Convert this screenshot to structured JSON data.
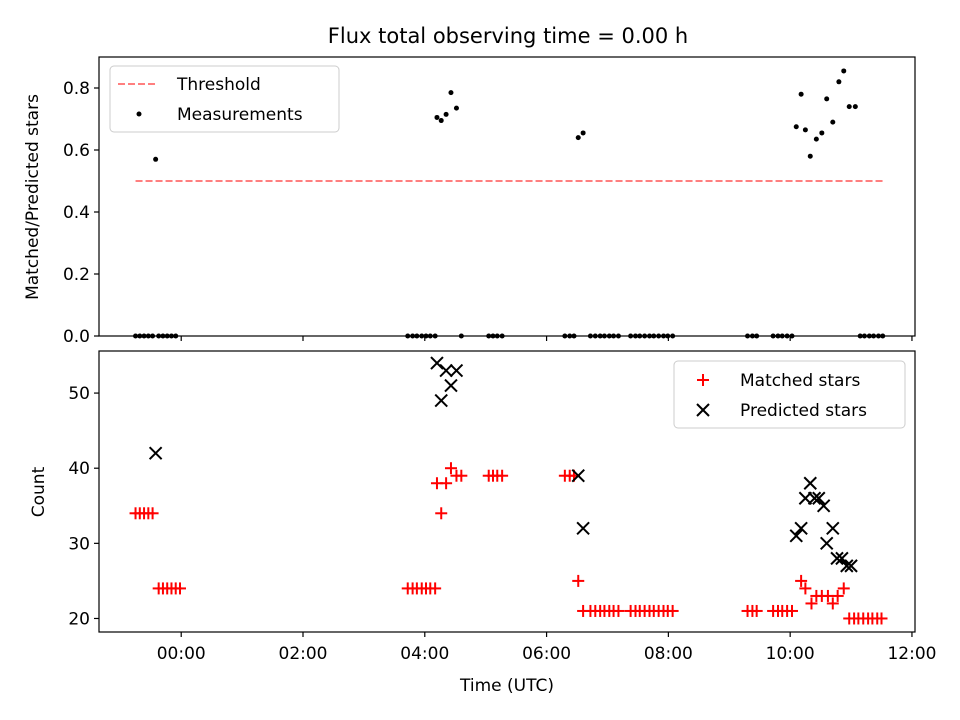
{
  "chart_data": [
    {
      "type": "scatter",
      "title": "Flux total observing time = 0.00 h",
      "xlabel": "",
      "ylabel": "Matched/Predicted stars",
      "xlim": [
        -1.35,
        12.05
      ],
      "ylim": [
        0,
        0.9
      ],
      "yticks": [
        0.0,
        0.2,
        0.4,
        0.6,
        0.8
      ],
      "ytick_labels": [
        "0.0",
        "0.2",
        "0.4",
        "0.6",
        "0.8"
      ],
      "grid": false,
      "legend_position": "top-left",
      "threshold": {
        "name": "Threshold",
        "y": 0.5,
        "x_start": -0.75,
        "x_end": 11.55,
        "color": "#ff7f7f",
        "style": "dashed"
      },
      "series": [
        {
          "name": "Measurements",
          "marker": "dot",
          "color": "#000000",
          "points": [
            [
              -0.75,
              0
            ],
            [
              -0.68,
              0
            ],
            [
              -0.61,
              0
            ],
            [
              -0.54,
              0
            ],
            [
              -0.47,
              0
            ],
            [
              -0.37,
              0
            ],
            [
              -0.3,
              0
            ],
            [
              -0.23,
              0
            ],
            [
              -0.16,
              0
            ],
            [
              -0.09,
              0
            ],
            [
              -0.42,
              0.57
            ],
            [
              3.72,
              0
            ],
            [
              3.8,
              0
            ],
            [
              3.87,
              0
            ],
            [
              3.95,
              0
            ],
            [
              4.02,
              0
            ],
            [
              4.09,
              0
            ],
            [
              4.17,
              0
            ],
            [
              4.2,
              0.705
            ],
            [
              4.27,
              0.695
            ],
            [
              4.35,
              0.715
            ],
            [
              4.43,
              0.785
            ],
            [
              4.52,
              0.735
            ],
            [
              4.6,
              0
            ],
            [
              5.05,
              0
            ],
            [
              5.12,
              0
            ],
            [
              5.19,
              0
            ],
            [
              5.27,
              0
            ],
            [
              6.3,
              0
            ],
            [
              6.38,
              0
            ],
            [
              6.45,
              0
            ],
            [
              6.52,
              0.64
            ],
            [
              6.6,
              0.655
            ],
            [
              6.72,
              0
            ],
            [
              6.8,
              0
            ],
            [
              6.88,
              0
            ],
            [
              6.95,
              0
            ],
            [
              7.03,
              0
            ],
            [
              7.1,
              0
            ],
            [
              7.18,
              0
            ],
            [
              7.38,
              0
            ],
            [
              7.46,
              0
            ],
            [
              7.53,
              0
            ],
            [
              7.61,
              0
            ],
            [
              7.69,
              0
            ],
            [
              7.76,
              0
            ],
            [
              7.84,
              0
            ],
            [
              7.92,
              0
            ],
            [
              7.99,
              0
            ],
            [
              8.07,
              0
            ],
            [
              9.3,
              0
            ],
            [
              9.38,
              0
            ],
            [
              9.45,
              0
            ],
            [
              9.72,
              0
            ],
            [
              9.8,
              0
            ],
            [
              9.87,
              0
            ],
            [
              9.95,
              0
            ],
            [
              10.03,
              0
            ],
            [
              10.1,
              0.675
            ],
            [
              10.18,
              0.78
            ],
            [
              10.25,
              0.665
            ],
            [
              10.33,
              0.58
            ],
            [
              10.43,
              0.635
            ],
            [
              10.52,
              0.655
            ],
            [
              10.6,
              0.765
            ],
            [
              10.7,
              0.69
            ],
            [
              10.8,
              0.82
            ],
            [
              10.88,
              0.855
            ],
            [
              10.97,
              0.74
            ],
            [
              11.07,
              0.74
            ],
            [
              11.15,
              0
            ],
            [
              11.22,
              0
            ],
            [
              11.3,
              0
            ],
            [
              11.37,
              0
            ],
            [
              11.45,
              0
            ],
            [
              11.52,
              0
            ]
          ]
        }
      ]
    },
    {
      "type": "scatter",
      "title": "",
      "xlabel": "Time (UTC)",
      "ylabel": "Count",
      "xlim": [
        -1.35,
        12.05
      ],
      "ylim": [
        18.2,
        55.6
      ],
      "yticks": [
        20,
        30,
        40,
        50
      ],
      "ytick_labels": [
        "20",
        "30",
        "40",
        "50"
      ],
      "xticks": [
        0,
        2,
        4,
        6,
        8,
        10,
        12
      ],
      "xtick_labels": [
        "00:00",
        "02:00",
        "04:00",
        "06:00",
        "08:00",
        "10:00",
        "12:00"
      ],
      "grid": false,
      "legend_position": "top-right",
      "series": [
        {
          "name": "Matched stars",
          "marker": "plus",
          "color": "#ff0000",
          "points": [
            [
              -0.75,
              34
            ],
            [
              -0.68,
              34
            ],
            [
              -0.61,
              34
            ],
            [
              -0.54,
              34
            ],
            [
              -0.47,
              34
            ],
            [
              -0.37,
              24
            ],
            [
              -0.3,
              24
            ],
            [
              -0.23,
              24
            ],
            [
              -0.16,
              24
            ],
            [
              -0.09,
              24
            ],
            [
              -0.02,
              24
            ],
            [
              3.72,
              24
            ],
            [
              3.8,
              24
            ],
            [
              3.87,
              24
            ],
            [
              3.95,
              24
            ],
            [
              4.02,
              24
            ],
            [
              4.09,
              24
            ],
            [
              4.17,
              24
            ],
            [
              4.2,
              38
            ],
            [
              4.27,
              34
            ],
            [
              4.35,
              38
            ],
            [
              4.43,
              40
            ],
            [
              4.52,
              39
            ],
            [
              4.6,
              39
            ],
            [
              5.05,
              39
            ],
            [
              5.12,
              39
            ],
            [
              5.19,
              39
            ],
            [
              5.27,
              39
            ],
            [
              6.3,
              39
            ],
            [
              6.38,
              39
            ],
            [
              6.45,
              39
            ],
            [
              6.52,
              25
            ],
            [
              6.6,
              21
            ],
            [
              6.72,
              21
            ],
            [
              6.8,
              21
            ],
            [
              6.88,
              21
            ],
            [
              6.95,
              21
            ],
            [
              7.03,
              21
            ],
            [
              7.1,
              21
            ],
            [
              7.18,
              21
            ],
            [
              7.38,
              21
            ],
            [
              7.46,
              21
            ],
            [
              7.53,
              21
            ],
            [
              7.61,
              21
            ],
            [
              7.69,
              21
            ],
            [
              7.76,
              21
            ],
            [
              7.84,
              21
            ],
            [
              7.92,
              21
            ],
            [
              7.99,
              21
            ],
            [
              8.07,
              21
            ],
            [
              9.3,
              21
            ],
            [
              9.38,
              21
            ],
            [
              9.45,
              21
            ],
            [
              9.72,
              21
            ],
            [
              9.8,
              21
            ],
            [
              9.87,
              21
            ],
            [
              9.95,
              21
            ],
            [
              10.03,
              21
            ],
            [
              10.18,
              25
            ],
            [
              10.25,
              24
            ],
            [
              10.35,
              22
            ],
            [
              10.43,
              23
            ],
            [
              10.52,
              23
            ],
            [
              10.62,
              23
            ],
            [
              10.7,
              22
            ],
            [
              10.78,
              23
            ],
            [
              10.88,
              24
            ],
            [
              10.97,
              20
            ],
            [
              11.05,
              20
            ],
            [
              11.12,
              20
            ],
            [
              11.2,
              20
            ],
            [
              11.28,
              20
            ],
            [
              11.35,
              20
            ],
            [
              11.43,
              20
            ],
            [
              11.5,
              20
            ]
          ]
        },
        {
          "name": "Predicted stars",
          "marker": "x",
          "color": "#000000",
          "points": [
            [
              -0.42,
              42
            ],
            [
              4.2,
              54
            ],
            [
              4.27,
              49
            ],
            [
              4.35,
              53
            ],
            [
              4.43,
              51
            ],
            [
              4.52,
              53
            ],
            [
              6.52,
              39
            ],
            [
              6.6,
              32
            ],
            [
              10.1,
              31
            ],
            [
              10.18,
              32
            ],
            [
              10.25,
              36
            ],
            [
              10.33,
              38
            ],
            [
              10.4,
              36
            ],
            [
              10.47,
              36
            ],
            [
              10.55,
              35
            ],
            [
              10.6,
              30
            ],
            [
              10.7,
              32
            ],
            [
              10.77,
              28
            ],
            [
              10.85,
              28
            ],
            [
              10.93,
              27
            ],
            [
              11.0,
              27
            ]
          ]
        }
      ]
    }
  ]
}
